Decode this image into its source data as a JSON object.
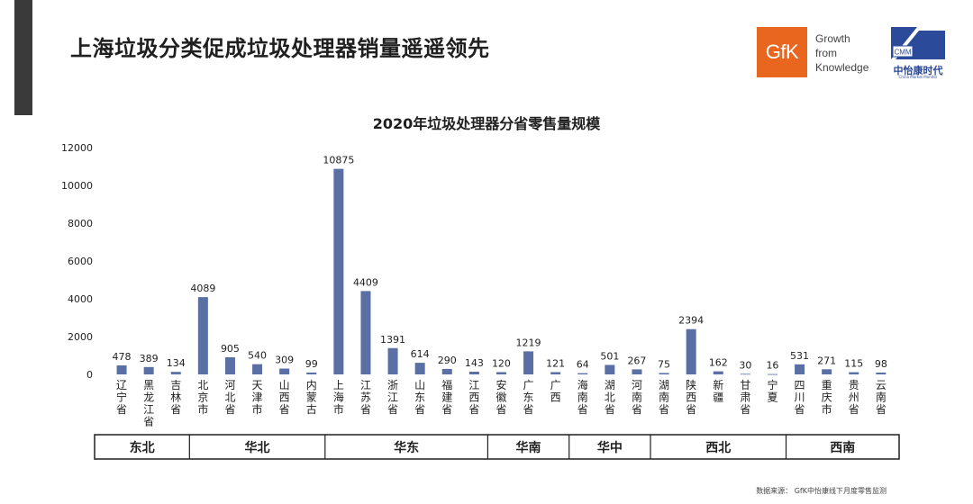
{
  "page": {
    "title": "上海垃圾分类促成垃圾处理器销量遥遥领先",
    "source": "数据来源： GfK中怡康线下月度零售监测"
  },
  "logos": {
    "gfk_text": "GfK",
    "gfk_tagline": [
      "Growth",
      "from",
      "Knowledge"
    ],
    "cmm_mark": "CMM",
    "cmm_name": "中怡康时代",
    "cmm_sub": "China Market Monitor"
  },
  "colors": {
    "bar": "#5a6fa3",
    "text": "#1f1f1f",
    "gfk_orange": "#e9661f",
    "cmm_blue": "#2b4a9a",
    "side_bar": "#3a3a3a"
  },
  "chart_data": {
    "type": "bar",
    "title": "2020年垃圾处理器分省零售量规模",
    "ylim": [
      0,
      12000
    ],
    "yticks": [
      0,
      2000,
      4000,
      6000,
      8000,
      10000,
      12000
    ],
    "grid": false,
    "categories": [
      "辽宁省",
      "黑龙江省",
      "吉林省",
      "北京市",
      "河北省",
      "天津市",
      "山西省",
      "内蒙古",
      "上海市",
      "江苏省",
      "浙江省",
      "山东省",
      "福建省",
      "江西省",
      "安徽省",
      "广东省",
      "广西",
      "海南省",
      "湖北省",
      "河南省",
      "湖南省",
      "陕西省",
      "新疆",
      "甘肃省",
      "宁夏",
      "四川省",
      "重庆市",
      "贵州省",
      "云南省"
    ],
    "values": [
      478,
      389,
      134,
      4089,
      905,
      540,
      309,
      99,
      10875,
      4409,
      1391,
      614,
      290,
      143,
      120,
      1219,
      121,
      64,
      501,
      267,
      75,
      2394,
      162,
      30,
      16,
      531,
      271,
      115,
      98
    ],
    "regions": [
      {
        "name": "东北",
        "count": 3
      },
      {
        "name": "华北",
        "count": 5
      },
      {
        "name": "华东",
        "count": 6
      },
      {
        "name": "华南",
        "count": 3
      },
      {
        "name": "华中",
        "count": 3
      },
      {
        "name": "西北",
        "count": 5
      },
      {
        "name": "西南",
        "count": 4
      }
    ]
  }
}
